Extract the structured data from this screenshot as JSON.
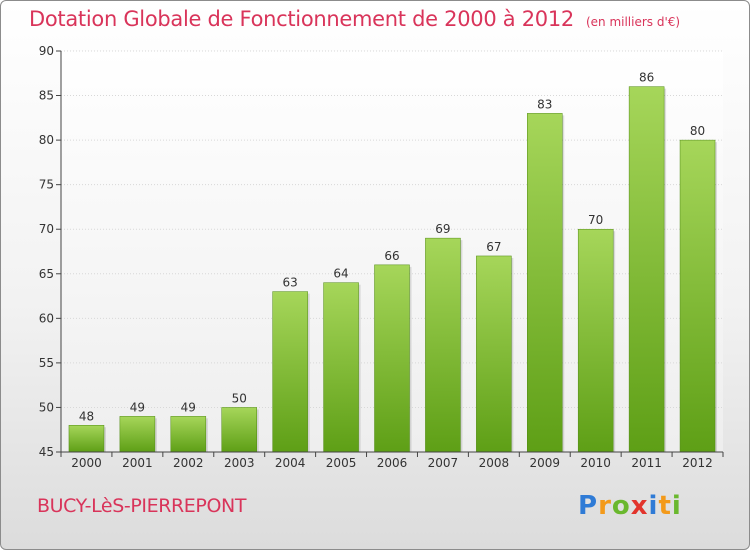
{
  "header": {
    "title": "Dotation Globale de Fonctionnement de 2000 à 2012",
    "unit": "(en milliers d'€)"
  },
  "footer": {
    "town": "BUCY-LèS-PIERREPONT",
    "logo": "Proxiti"
  },
  "colors": {
    "bar_top": "#a6d65a",
    "bar_bottom": "#5e9f16",
    "title": "#d9345a"
  },
  "chart_data": {
    "type": "bar",
    "title": "Dotation Globale de Fonctionnement de 2000 à 2012",
    "subtitle": "(en milliers d'€)",
    "categories": [
      "2000",
      "2001",
      "2002",
      "2003",
      "2004",
      "2005",
      "2006",
      "2007",
      "2008",
      "2009",
      "2010",
      "2011",
      "2012"
    ],
    "values": [
      48,
      49,
      49,
      50,
      63,
      64,
      66,
      69,
      67,
      83,
      70,
      86,
      80
    ],
    "ylim": [
      45,
      90
    ],
    "yticks": [
      45,
      50,
      55,
      60,
      65,
      70,
      75,
      80,
      85,
      90
    ],
    "grid": true,
    "data_labels": true
  }
}
